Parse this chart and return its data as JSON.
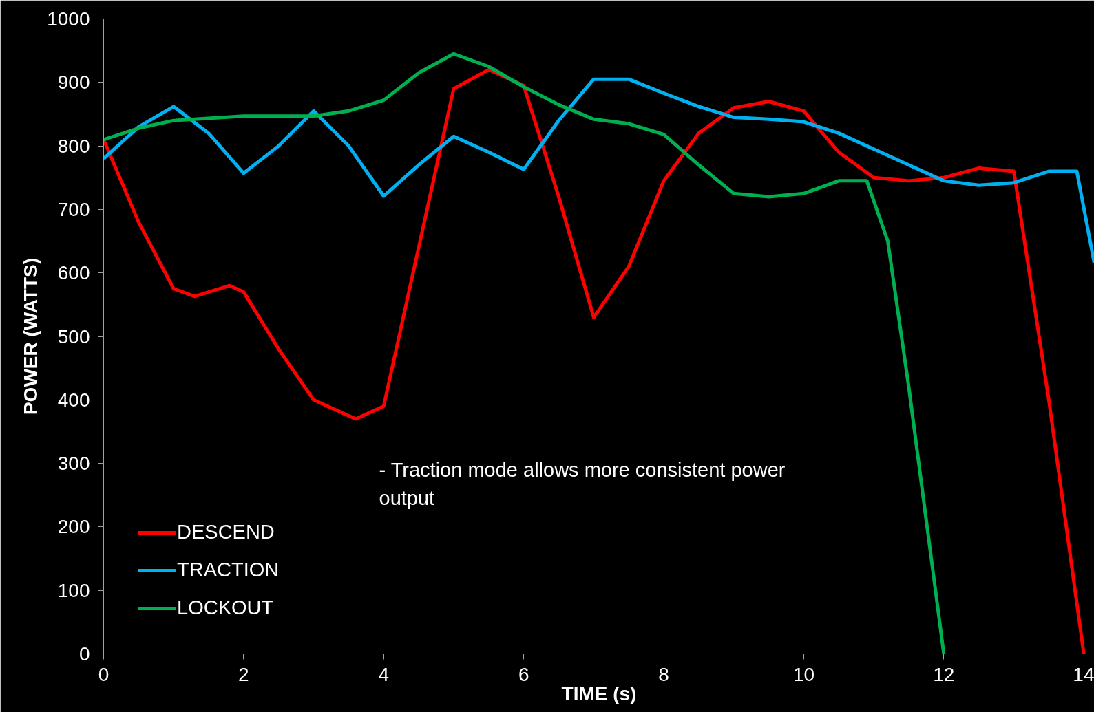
{
  "chart_data": {
    "type": "line",
    "xlabel": "TIME (s)",
    "ylabel": "POWER (WATTS)",
    "xlim": [
      0,
      14.15
    ],
    "ylim": [
      0,
      1000
    ],
    "xticks": [
      0,
      2,
      4,
      6,
      8,
      10,
      12,
      14
    ],
    "yticks": [
      0,
      100,
      200,
      300,
      400,
      500,
      600,
      700,
      800,
      900,
      1000
    ],
    "grid": false,
    "legend": "bottom left",
    "line_style": "solid",
    "marker": "none",
    "annotations": [
      " - Traction mode allows more consistent power output"
    ],
    "series": [
      {
        "name": "DESCEND",
        "color": "#ff0000",
        "x": [
          0,
          0.5,
          1,
          1.3,
          1.8,
          2,
          2.5,
          3,
          3.6,
          4,
          4.5,
          5,
          5.5,
          6,
          6.5,
          7,
          7.5,
          8,
          8.5,
          9,
          9.5,
          10,
          10.5,
          11,
          11.5,
          12,
          12.5,
          13,
          13.5,
          14
        ],
        "values": [
          810,
          680,
          575,
          563,
          580,
          570,
          480,
          400,
          370,
          390,
          640,
          890,
          920,
          895,
          720,
          530,
          610,
          745,
          820,
          860,
          870,
          855,
          790,
          750,
          745,
          750,
          765,
          760,
          400,
          0
        ]
      },
      {
        "name": "TRACTION",
        "color": "#00b0f0",
        "x": [
          0,
          0.5,
          1,
          1.5,
          2,
          2.5,
          3,
          3.5,
          4,
          4.5,
          5,
          5.5,
          6,
          6.5,
          7,
          7.5,
          8,
          8.5,
          9,
          9.5,
          10,
          10.5,
          11,
          11.5,
          12,
          12.5,
          13,
          13.5,
          13.9,
          14.15
        ],
        "values": [
          780,
          830,
          862,
          820,
          757,
          800,
          855,
          800,
          721,
          770,
          815,
          790,
          763,
          840,
          905,
          905,
          883,
          862,
          845,
          842,
          838,
          820,
          795,
          770,
          745,
          738,
          742,
          760,
          760,
          615
        ]
      },
      {
        "name": "LOCKOUT",
        "color": "#00b050",
        "x": [
          0,
          0.5,
          1,
          2,
          3,
          3.5,
          4,
          4.5,
          5,
          5.5,
          6,
          6.5,
          7,
          7.5,
          8,
          8.5,
          9,
          9.5,
          10,
          10.5,
          10.9,
          11.2,
          11.5,
          12
        ],
        "values": [
          810,
          828,
          840,
          847,
          847,
          855,
          872,
          915,
          945,
          925,
          893,
          865,
          842,
          835,
          818,
          770,
          725,
          720,
          725,
          745,
          745,
          650,
          420,
          0
        ]
      }
    ]
  }
}
